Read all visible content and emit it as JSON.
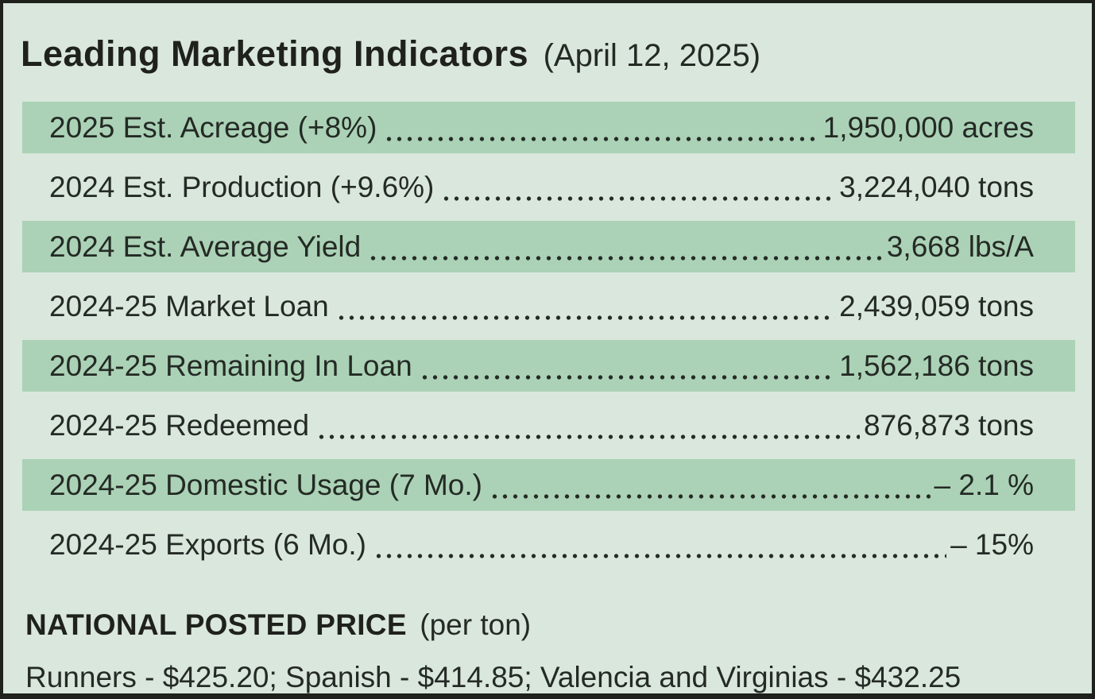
{
  "header": {
    "title": "Leading Marketing Indicators",
    "date": "(April 12, 2025)"
  },
  "indicators": [
    {
      "label": "2025 Est. Acreage (+8%)",
      "value": "1,950,000 acres",
      "highlighted": true
    },
    {
      "label": "2024 Est. Production (+9.6%)",
      "value": "3,224,040 tons",
      "highlighted": false
    },
    {
      "label": "2024 Est. Average Yield",
      "value": "3,668 lbs/A",
      "highlighted": true
    },
    {
      "label": "2024-25 Market Loan",
      "value": "2,439,059 tons",
      "highlighted": false
    },
    {
      "label": "2024-25 Remaining In Loan",
      "value": "1,562,186 tons",
      "highlighted": true
    },
    {
      "label": "2024-25 Redeemed",
      "value": "876,873 tons",
      "highlighted": false
    },
    {
      "label": "2024-25 Domestic Usage (7 Mo.)",
      "value": "– 2.1 %",
      "highlighted": true
    },
    {
      "label": "2024-25 Exports (6 Mo.)",
      "value": "– 15%",
      "highlighted": false
    }
  ],
  "footer": {
    "heading": "NATIONAL POSTED PRICE",
    "heading_suffix": "(per ton)",
    "prices_line": "Runners - $425.20; Spanish - $414.85; Valencia and Virginias - $432.25"
  },
  "colors": {
    "background": "#dae7dc",
    "row_highlight": "#abd2b6",
    "ink": "#242a25",
    "border": "#1e211c"
  }
}
